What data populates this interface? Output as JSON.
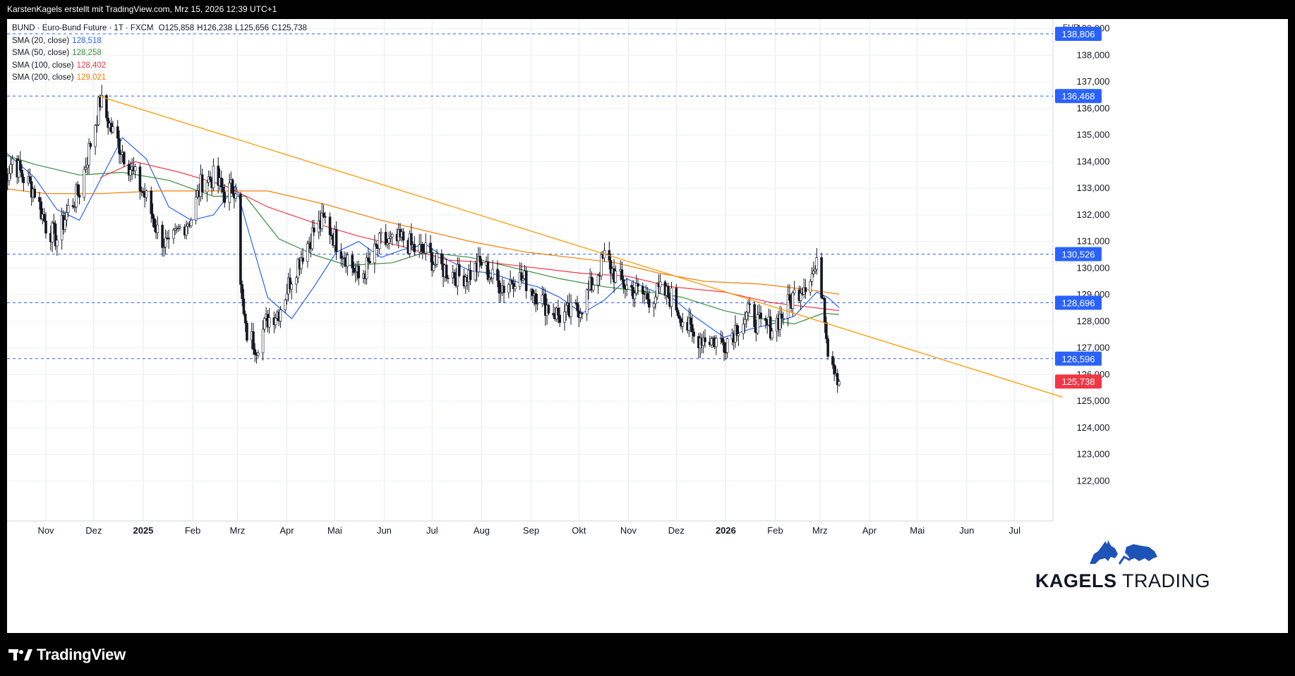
{
  "header": {
    "attribution": "KarstenKagels erstellt mit TradingView.com, Mrz 15, 2026 12:39 UTC+1"
  },
  "legend": {
    "symbol_line": "BUND · Euro-Bund Future · 1T · FXCM",
    "ohlc": [
      {
        "label": "O",
        "value": "125,858"
      },
      {
        "label": "H",
        "value": "126,238"
      },
      {
        "label": "L",
        "value": "125,656"
      },
      {
        "label": "C",
        "value": "125,738"
      }
    ],
    "indicators": [
      {
        "label": "SMA (20, close)",
        "value": "128,518",
        "color": "#2962ff"
      },
      {
        "label": "SMA (50, close)",
        "value": "128,258",
        "color": "#388e3c"
      },
      {
        "label": "SMA (100, close)",
        "value": "128,402",
        "color": "#f23645"
      },
      {
        "label": "SMA (200, close)",
        "value": "129,021",
        "color": "#f57c00"
      }
    ]
  },
  "price_axis": {
    "currency": "EUR"
  },
  "watermark": {
    "brand_bold": "KAGELS",
    "brand_light": "TRADING",
    "icon": "bull-bear-icon"
  },
  "footer": {
    "brand": "TradingView",
    "logo_icon": "tradingview-logo-icon"
  },
  "colors": {
    "up": "#ffffff",
    "down": "#131722",
    "wick": "#131722",
    "sma20": "#2962ff",
    "sma50": "#388e3c",
    "sma100": "#f23645",
    "sma200": "#f57c00",
    "trendline": "#ff9800",
    "hline": "#2962ff",
    "badge": "#2962ff",
    "last_badge": "#f23645",
    "watermark": "#1e53b8"
  },
  "chart_data": {
    "type": "candlestick",
    "y_unit": "EUR",
    "ylim": [
      121.0,
      139.7
    ],
    "xlim": [
      "2024-10-04",
      "2026-07-31"
    ],
    "yticks": [
      122,
      123,
      124,
      125,
      126,
      127,
      128,
      129,
      130,
      131,
      132,
      133,
      134,
      135,
      136,
      137,
      138,
      139
    ],
    "ytick_labels": [
      "122,000",
      "123,000",
      "124,000",
      "125,000",
      "126,000",
      "127,000",
      "128,000",
      "129,000",
      "130,000",
      "131,000",
      "132,000",
      "133,000",
      "134,000",
      "135,000",
      "136,000",
      "137,000",
      "138,000",
      "139,000"
    ],
    "xticks": [
      {
        "date": "2024-11-01",
        "label": "Nov"
      },
      {
        "date": "2024-12-01",
        "label": "Dez"
      },
      {
        "date": "2025-01-01",
        "label": "2025",
        "bold": true
      },
      {
        "date": "2025-02-01",
        "label": "Feb"
      },
      {
        "date": "2025-03-01",
        "label": "Mrz"
      },
      {
        "date": "2025-04-01",
        "label": "Apr"
      },
      {
        "date": "2025-05-01",
        "label": "Mai"
      },
      {
        "date": "2025-06-01",
        "label": "Jun"
      },
      {
        "date": "2025-07-01",
        "label": "Jul"
      },
      {
        "date": "2025-08-01",
        "label": "Aug"
      },
      {
        "date": "2025-09-01",
        "label": "Sep"
      },
      {
        "date": "2025-10-01",
        "label": "Okt"
      },
      {
        "date": "2025-11-01",
        "label": "Nov"
      },
      {
        "date": "2025-12-01",
        "label": "Dez"
      },
      {
        "date": "2026-01-01",
        "label": "2026",
        "bold": true
      },
      {
        "date": "2026-02-01",
        "label": "Feb"
      },
      {
        "date": "2026-03-01",
        "label": "Mrz"
      },
      {
        "date": "2026-04-01",
        "label": "Apr"
      },
      {
        "date": "2026-05-01",
        "label": "Mai"
      },
      {
        "date": "2026-06-01",
        "label": "Jun"
      },
      {
        "date": "2026-07-01",
        "label": "Jul"
      }
    ],
    "horizontal_levels": [
      {
        "value": 138.806,
        "label": "138,806"
      },
      {
        "value": 136.468,
        "label": "136,468"
      },
      {
        "value": 130.526,
        "label": "130,526"
      },
      {
        "value": 128.696,
        "label": "128,696"
      },
      {
        "value": 126.596,
        "label": "126,596"
      }
    ],
    "last_price": {
      "value": 125.738,
      "label": "125,738"
    },
    "trendline": {
      "start": [
        "2024-12-05",
        136.45
      ],
      "end": [
        "2026-07-31",
        125.15
      ]
    },
    "ohlc": [
      [
        "2024-10-04",
        133.0
      ],
      [
        "2024-10-11",
        134.1
      ],
      [
        "2024-10-18",
        133.4
      ],
      [
        "2024-10-25",
        132.9
      ],
      [
        "2024-11-01",
        131.6
      ],
      [
        "2024-11-08",
        131.1
      ],
      [
        "2024-11-15",
        132.2
      ],
      [
        "2024-11-22",
        132.9
      ],
      [
        "2024-11-29",
        134.7
      ],
      [
        "2024-12-05",
        136.3
      ],
      [
        "2024-12-12",
        135.2
      ],
      [
        "2024-12-19",
        134.4
      ],
      [
        "2024-12-27",
        133.4
      ],
      [
        "2025-01-03",
        132.6
      ],
      [
        "2025-01-10",
        131.4
      ],
      [
        "2025-01-17",
        130.7
      ],
      [
        "2025-01-24",
        131.5
      ],
      [
        "2025-01-31",
        131.9
      ],
      [
        "2025-02-07",
        133.3
      ],
      [
        "2025-02-14",
        133.4
      ],
      [
        "2025-02-21",
        132.8
      ],
      [
        "2025-02-28",
        133.1
      ],
      [
        "2025-03-03",
        129.2
      ],
      [
        "2025-03-06",
        127.6
      ],
      [
        "2025-03-13",
        127.1
      ],
      [
        "2025-03-20",
        128.1
      ],
      [
        "2025-03-27",
        128.4
      ],
      [
        "2025-04-04",
        129.7
      ],
      [
        "2025-04-11",
        130.6
      ],
      [
        "2025-04-18",
        131.4
      ],
      [
        "2025-04-25",
        131.8
      ],
      [
        "2025-05-02",
        131.0
      ],
      [
        "2025-05-09",
        130.4
      ],
      [
        "2025-05-16",
        129.6
      ],
      [
        "2025-05-23",
        130.2
      ],
      [
        "2025-05-30",
        131.0
      ],
      [
        "2025-06-06",
        130.9
      ],
      [
        "2025-06-13",
        131.1
      ],
      [
        "2025-06-20",
        130.7
      ],
      [
        "2025-06-27",
        130.6
      ],
      [
        "2025-07-04",
        130.1
      ],
      [
        "2025-07-11",
        129.9
      ],
      [
        "2025-07-18",
        129.7
      ],
      [
        "2025-07-25",
        129.8
      ],
      [
        "2025-08-01",
        130.2
      ],
      [
        "2025-08-08",
        129.6
      ],
      [
        "2025-08-15",
        129.3
      ],
      [
        "2025-08-22",
        129.7
      ],
      [
        "2025-08-29",
        129.5
      ],
      [
        "2025-09-05",
        129.0
      ],
      [
        "2025-09-12",
        128.5
      ],
      [
        "2025-09-19",
        128.2
      ],
      [
        "2025-09-26",
        128.3
      ],
      [
        "2025-10-03",
        128.6
      ],
      [
        "2025-10-10",
        129.5
      ],
      [
        "2025-10-17",
        130.4
      ],
      [
        "2025-10-24",
        129.7
      ],
      [
        "2025-10-31",
        129.3
      ],
      [
        "2025-11-07",
        129.1
      ],
      [
        "2025-11-14",
        128.9
      ],
      [
        "2025-11-21",
        129.1
      ],
      [
        "2025-11-28",
        128.9
      ],
      [
        "2025-12-05",
        128.1
      ],
      [
        "2025-12-12",
        127.4
      ],
      [
        "2025-12-19",
        127.4
      ],
      [
        "2025-12-31",
        127.2
      ],
      [
        "2026-01-09",
        127.9
      ],
      [
        "2026-01-16",
        128.3
      ],
      [
        "2026-01-23",
        127.8
      ],
      [
        "2026-01-30",
        127.8
      ],
      [
        "2026-02-06",
        128.3
      ],
      [
        "2026-02-13",
        129.0
      ],
      [
        "2026-02-20",
        129.5
      ],
      [
        "2026-02-27",
        130.0
      ],
      [
        "2026-03-03",
        129.0
      ],
      [
        "2026-03-06",
        127.0
      ],
      [
        "2026-03-11",
        126.2
      ],
      [
        "2026-03-13",
        125.738
      ]
    ],
    "series": [
      {
        "name": "SMA (20, close)",
        "points": [
          [
            "2024-10-04",
            134.5
          ],
          [
            "2024-10-25",
            133.4
          ],
          [
            "2024-11-08",
            132.2
          ],
          [
            "2024-11-22",
            131.8
          ],
          [
            "2024-12-05",
            133.3
          ],
          [
            "2024-12-19",
            134.9
          ],
          [
            "2025-01-03",
            134.1
          ],
          [
            "2025-01-17",
            132.3
          ],
          [
            "2025-01-31",
            131.8
          ],
          [
            "2025-02-14",
            132.0
          ],
          [
            "2025-02-28",
            133.1
          ],
          [
            "2025-03-06",
            131.8
          ],
          [
            "2025-03-20",
            128.9
          ],
          [
            "2025-04-04",
            128.1
          ],
          [
            "2025-04-18",
            129.3
          ],
          [
            "2025-05-02",
            130.6
          ],
          [
            "2025-05-16",
            131.0
          ],
          [
            "2025-05-30",
            130.4
          ],
          [
            "2025-06-13",
            130.7
          ],
          [
            "2025-06-27",
            130.9
          ],
          [
            "2025-07-11",
            130.3
          ],
          [
            "2025-07-25",
            129.9
          ],
          [
            "2025-08-08",
            129.8
          ],
          [
            "2025-08-22",
            129.5
          ],
          [
            "2025-09-05",
            129.3
          ],
          [
            "2025-09-19",
            128.9
          ],
          [
            "2025-10-03",
            128.3
          ],
          [
            "2025-10-17",
            128.8
          ],
          [
            "2025-10-31",
            129.6
          ],
          [
            "2025-11-14",
            129.2
          ],
          [
            "2025-11-28",
            128.9
          ],
          [
            "2025-12-12",
            128.2
          ],
          [
            "2025-12-31",
            127.4
          ],
          [
            "2026-01-16",
            127.7
          ],
          [
            "2026-01-30",
            127.9
          ],
          [
            "2026-02-13",
            128.2
          ],
          [
            "2026-02-27",
            129.1
          ],
          [
            "2026-03-06",
            128.9
          ],
          [
            "2026-03-13",
            128.518
          ]
        ]
      },
      {
        "name": "SMA (50, close)",
        "points": [
          [
            "2024-10-04",
            134.3
          ],
          [
            "2024-10-25",
            133.9
          ],
          [
            "2024-11-22",
            133.5
          ],
          [
            "2024-12-19",
            133.6
          ],
          [
            "2025-01-17",
            133.3
          ],
          [
            "2025-02-14",
            132.7
          ],
          [
            "2025-03-06",
            132.7
          ],
          [
            "2025-03-27",
            131.1
          ],
          [
            "2025-04-18",
            130.5
          ],
          [
            "2025-05-09",
            130.1
          ],
          [
            "2025-06-06",
            130.2
          ],
          [
            "2025-06-27",
            130.6
          ],
          [
            "2025-07-25",
            130.4
          ],
          [
            "2025-08-22",
            130.0
          ],
          [
            "2025-09-19",
            129.6
          ],
          [
            "2025-10-17",
            129.3
          ],
          [
            "2025-11-14",
            129.1
          ],
          [
            "2025-12-05",
            128.9
          ],
          [
            "2025-12-31",
            128.4
          ],
          [
            "2026-01-23",
            128.1
          ],
          [
            "2026-02-13",
            127.9
          ],
          [
            "2026-03-03",
            128.3
          ],
          [
            "2026-03-13",
            128.258
          ]
        ]
      },
      {
        "name": "SMA (100, close)",
        "points": [
          [
            "2024-12-05",
            133.4
          ],
          [
            "2024-12-27",
            134.0
          ],
          [
            "2025-01-24",
            133.6
          ],
          [
            "2025-02-21",
            133.1
          ],
          [
            "2025-03-20",
            132.3
          ],
          [
            "2025-04-18",
            131.7
          ],
          [
            "2025-05-16",
            131.2
          ],
          [
            "2025-06-13",
            130.8
          ],
          [
            "2025-07-11",
            130.3
          ],
          [
            "2025-08-08",
            130.2
          ],
          [
            "2025-09-05",
            130.0
          ],
          [
            "2025-10-03",
            129.8
          ],
          [
            "2025-10-31",
            129.7
          ],
          [
            "2025-11-28",
            129.3
          ],
          [
            "2025-12-31",
            129.1
          ],
          [
            "2026-01-30",
            128.7
          ],
          [
            "2026-02-27",
            128.5
          ],
          [
            "2026-03-13",
            128.402
          ]
        ]
      },
      {
        "name": "SMA (200, close)",
        "points": [
          [
            "2024-10-04",
            133.0
          ],
          [
            "2024-11-01",
            132.8
          ],
          [
            "2024-12-05",
            132.8
          ],
          [
            "2025-01-10",
            132.9
          ],
          [
            "2025-02-14",
            132.9
          ],
          [
            "2025-03-20",
            132.9
          ],
          [
            "2025-04-25",
            132.4
          ],
          [
            "2025-05-30",
            131.8
          ],
          [
            "2025-06-27",
            131.4
          ],
          [
            "2025-07-25",
            131.0
          ],
          [
            "2025-08-29",
            130.6
          ],
          [
            "2025-09-26",
            130.4
          ],
          [
            "2025-10-24",
            130.2
          ],
          [
            "2025-11-21",
            129.8
          ],
          [
            "2025-12-19",
            129.5
          ],
          [
            "2026-01-23",
            129.4
          ],
          [
            "2026-02-20",
            129.2
          ],
          [
            "2026-03-13",
            129.021
          ]
        ]
      }
    ]
  }
}
